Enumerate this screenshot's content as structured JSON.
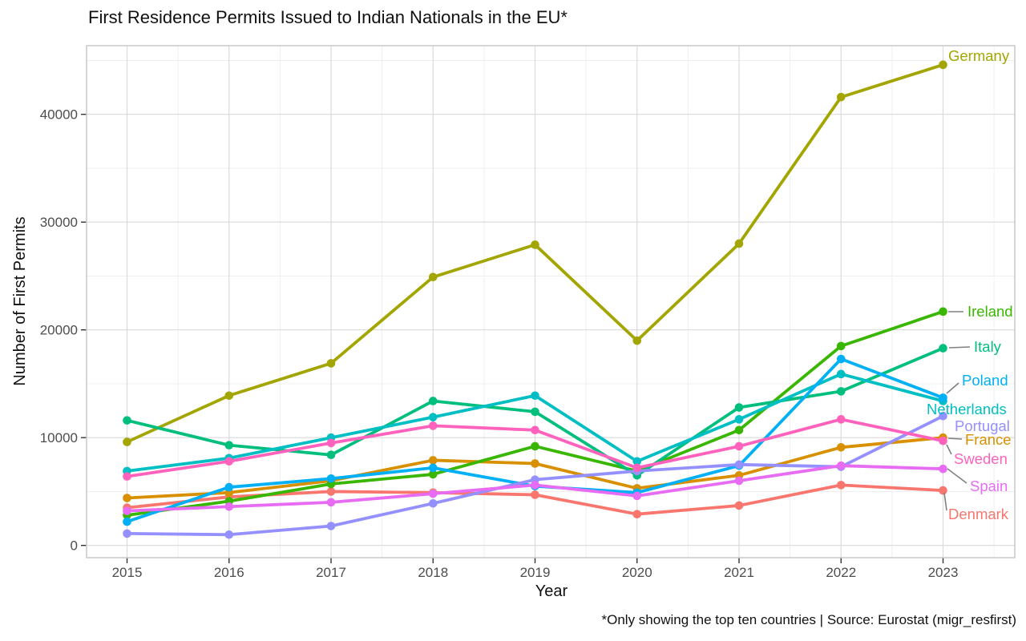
{
  "chart_data": {
    "type": "line",
    "title": "First Residence Permits Issued to Indian Nationals in the EU*",
    "xlabel": "Year",
    "ylabel": "Number of First Permits",
    "caption": "*Only showing the top ten countries | Source: Eurostat (migr_resfirst)",
    "x": [
      2015,
      2016,
      2017,
      2018,
      2019,
      2020,
      2021,
      2022,
      2023
    ],
    "x_tick_labels": [
      "2015",
      "2016",
      "2017",
      "2018",
      "2019",
      "2020",
      "2021",
      "2022",
      "2023"
    ],
    "y_ticks": [
      0,
      10000,
      20000,
      30000,
      40000
    ],
    "y_tick_labels": [
      "0",
      "10000",
      "20000",
      "30000",
      "40000"
    ],
    "y_minor_ticks": [
      5000,
      15000,
      25000,
      35000,
      45000
    ],
    "x_minor_ticks": [
      2015.5,
      2016.5,
      2017.5,
      2018.5,
      2019.5,
      2020.5,
      2021.5,
      2022.5,
      2023.5
    ],
    "ylim": [
      0,
      46400
    ],
    "grid": "major+minor",
    "legend_position": "direct-labels-right",
    "series": [
      {
        "name": "Denmark",
        "color": "#F8766D",
        "values": [
          3500,
          4500,
          5000,
          4900,
          4700,
          2900,
          3700,
          5600,
          5100
        ]
      },
      {
        "name": "France",
        "color": "#D89000",
        "values": [
          4400,
          4900,
          6000,
          7900,
          7600,
          5300,
          6500,
          9100,
          10000
        ]
      },
      {
        "name": "Germany",
        "color": "#A3A500",
        "values": [
          9600,
          13900,
          16900,
          24900,
          27900,
          19000,
          28000,
          41600,
          44600
        ]
      },
      {
        "name": "Ireland",
        "color": "#39B600",
        "values": [
          2800,
          4100,
          5700,
          6600,
          9200,
          6900,
          10700,
          18500,
          21700
        ]
      },
      {
        "name": "Italy",
        "color": "#00BF7D",
        "values": [
          11600,
          9300,
          8400,
          13400,
          12400,
          6500,
          12800,
          14300,
          18300
        ]
      },
      {
        "name": "Netherlands",
        "color": "#00BFC4",
        "values": [
          6900,
          8100,
          10000,
          11900,
          13900,
          7800,
          11700,
          15900,
          13400
        ]
      },
      {
        "name": "Poland",
        "color": "#00B0F6",
        "values": [
          2200,
          5400,
          6200,
          7200,
          5500,
          4900,
          7400,
          17300,
          13700
        ]
      },
      {
        "name": "Portugal",
        "color": "#9590FF",
        "values": [
          1100,
          1000,
          1800,
          3900,
          6100,
          6900,
          7500,
          7300,
          12000
        ]
      },
      {
        "name": "Spain",
        "color": "#E76BF3",
        "values": [
          3200,
          3600,
          4000,
          4800,
          5600,
          4600,
          6000,
          7400,
          7100
        ]
      },
      {
        "name": "Sweden",
        "color": "#FF62BC",
        "values": [
          6400,
          7800,
          9500,
          11100,
          10700,
          7200,
          9200,
          11700,
          9700
        ]
      }
    ]
  }
}
